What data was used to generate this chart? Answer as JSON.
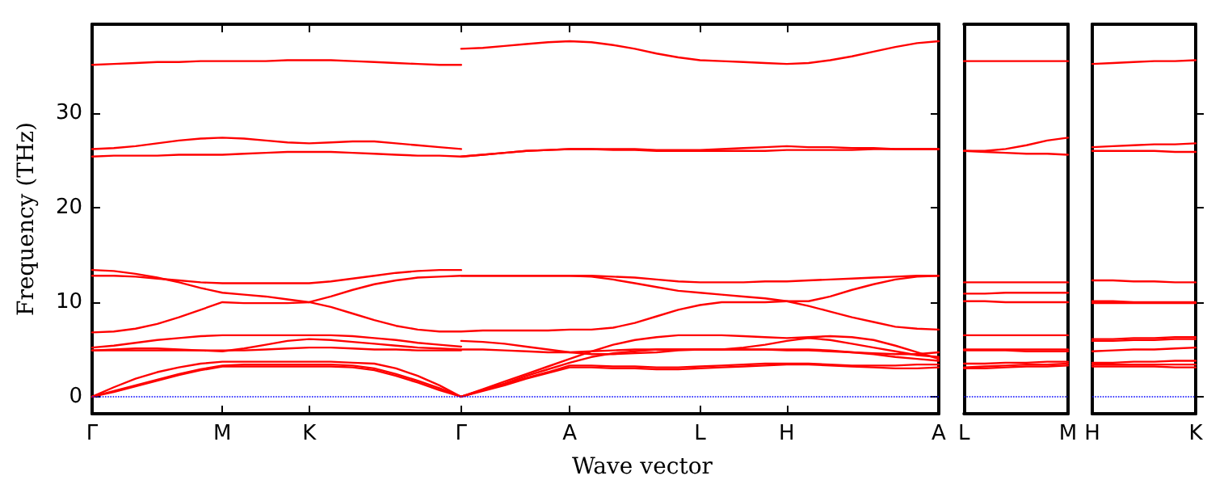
{
  "chart_data": [
    {
      "type": "line",
      "xlabel": "Wave vector",
      "ylabel": "Frequency (THz)",
      "ylim": [
        -1.8,
        39.4
      ],
      "yticks": [
        0,
        10,
        20,
        30
      ],
      "categories": [
        "Γ",
        null,
        null,
        null,
        null,
        null,
        "M",
        null,
        null,
        null,
        "K",
        null,
        null,
        null,
        null,
        null,
        null,
        "Γ",
        null,
        null,
        null,
        null,
        "A",
        null,
        null,
        null,
        null,
        null,
        "L",
        null,
        null,
        null,
        "H",
        null,
        null,
        null,
        null,
        null,
        null,
        "A"
      ],
      "grid": false,
      "marker": "none",
      "line_style": "solid",
      "ref_lines": [
        {
          "axis": "y",
          "value": 0,
          "color": "#0000ff",
          "line_style": "dotted"
        }
      ],
      "series": [
        {
          "color": "#ff0000",
          "values": [
            35.1,
            35.2,
            35.3,
            35.4,
            35.4,
            35.5,
            35.5,
            35.5,
            35.5,
            35.6,
            35.6,
            35.6,
            35.5,
            35.4,
            35.3,
            35.2,
            35.1,
            35.1,
            null,
            null,
            null,
            null,
            null,
            null,
            null,
            null,
            null,
            null,
            null,
            null,
            null,
            null,
            null,
            null,
            null,
            null,
            null,
            null,
            null,
            null
          ]
        },
        {
          "color": "#ff0000",
          "values": [
            26.2,
            26.3,
            26.5,
            26.8,
            27.1,
            27.3,
            27.4,
            27.3,
            27.1,
            26.9,
            26.8,
            26.9,
            27.0,
            27.0,
            26.8,
            26.6,
            26.4,
            26.2,
            null,
            null,
            null,
            null,
            null,
            null,
            null,
            null,
            null,
            null,
            null,
            null,
            null,
            null,
            null,
            null,
            null,
            null,
            null,
            null,
            null,
            null
          ]
        },
        {
          "color": "#ff0000",
          "values": [
            25.4,
            25.5,
            25.5,
            25.5,
            25.6,
            25.6,
            25.6,
            25.7,
            25.8,
            25.9,
            25.9,
            25.9,
            25.8,
            25.7,
            25.6,
            25.5,
            25.5,
            25.4,
            25.6,
            25.8,
            26.0,
            26.1,
            26.2,
            26.2,
            26.1,
            26.1,
            26.0,
            26.0,
            26.0,
            26.0,
            26.0,
            26.0,
            26.1,
            26.1,
            26.1,
            26.1,
            26.2,
            26.2,
            26.2,
            26.2
          ]
        },
        {
          "color": "#ff0000",
          "values": [
            null,
            null,
            null,
            null,
            null,
            null,
            null,
            null,
            null,
            null,
            null,
            null,
            null,
            null,
            null,
            null,
            null,
            25.4,
            25.6,
            25.8,
            26.0,
            26.1,
            26.2,
            26.2,
            26.2,
            26.2,
            26.1,
            26.1,
            26.1,
            26.2,
            26.3,
            26.4,
            26.5,
            26.4,
            26.4,
            26.3,
            26.3,
            26.2,
            26.2,
            26.2
          ]
        },
        {
          "color": "#ff0000",
          "values": [
            null,
            null,
            null,
            null,
            null,
            null,
            null,
            null,
            null,
            null,
            null,
            null,
            null,
            null,
            null,
            null,
            null,
            36.8,
            36.9,
            37.1,
            37.3,
            37.5,
            37.6,
            37.5,
            37.2,
            36.8,
            36.3,
            35.9,
            35.6,
            35.5,
            35.4,
            35.3,
            35.2,
            35.3,
            35.6,
            36.0,
            36.5,
            37.0,
            37.4,
            37.6
          ]
        },
        {
          "color": "#ff0000",
          "values": [
            13.4,
            13.3,
            13.0,
            12.6,
            12.1,
            11.5,
            11.0,
            10.8,
            10.6,
            10.3,
            10.0,
            9.5,
            8.8,
            8.1,
            7.5,
            7.1,
            6.9,
            6.9,
            7.0,
            7.0,
            7.0,
            7.0,
            7.1,
            7.1,
            7.3,
            7.8,
            8.5,
            9.2,
            9.7,
            10.0,
            10.0,
            10.0,
            10.1,
            10.1,
            10.6,
            11.3,
            11.9,
            12.4,
            12.7,
            12.8
          ]
        },
        {
          "color": "#ff0000",
          "values": [
            12.8,
            12.8,
            12.7,
            12.5,
            12.3,
            12.1,
            12.0,
            12.0,
            12.0,
            12.0,
            12.0,
            12.2,
            12.5,
            12.8,
            13.1,
            13.3,
            13.4,
            13.4,
            null,
            null,
            null,
            null,
            null,
            null,
            null,
            null,
            null,
            null,
            null,
            null,
            null,
            null,
            null,
            null,
            null,
            null,
            null,
            null,
            null,
            null
          ]
        },
        {
          "color": "#ff0000",
          "values": [
            6.8,
            6.9,
            7.2,
            7.7,
            8.4,
            9.2,
            10.0,
            9.9,
            9.9,
            9.9,
            10.0,
            10.6,
            11.3,
            11.9,
            12.3,
            12.6,
            12.7,
            12.8,
            12.8,
            12.8,
            12.8,
            12.8,
            12.8,
            12.7,
            12.4,
            12.0,
            11.6,
            11.2,
            11.0,
            10.8,
            10.6,
            10.4,
            10.1,
            9.6,
            9.0,
            8.4,
            7.9,
            7.4,
            7.2,
            7.1
          ]
        },
        {
          "color": "#ff0000",
          "values": [
            null,
            null,
            null,
            null,
            null,
            null,
            null,
            null,
            null,
            null,
            null,
            null,
            null,
            null,
            null,
            null,
            null,
            12.8,
            12.8,
            12.8,
            12.8,
            12.8,
            12.8,
            12.8,
            12.7,
            12.6,
            12.4,
            12.2,
            12.1,
            12.1,
            12.1,
            12.2,
            12.2,
            12.3,
            12.4,
            12.5,
            12.6,
            12.7,
            12.8,
            12.8
          ]
        },
        {
          "color": "#ff0000",
          "values": [
            5.2,
            5.4,
            5.7,
            6.0,
            6.2,
            6.4,
            6.5,
            6.5,
            6.5,
            6.5,
            6.5,
            6.5,
            6.4,
            6.2,
            6.0,
            5.7,
            5.5,
            5.3,
            null,
            null,
            null,
            null,
            null,
            null,
            null,
            null,
            null,
            null,
            null,
            null,
            null,
            null,
            null,
            null,
            null,
            null,
            null,
            null,
            null,
            null
          ]
        },
        {
          "color": "#ff0000",
          "values": [
            4.9,
            5.0,
            5.1,
            5.1,
            5.0,
            4.9,
            4.8,
            5.1,
            5.5,
            5.9,
            6.1,
            6.0,
            5.8,
            5.6,
            5.4,
            5.2,
            5.1,
            5.0,
            5.0,
            4.9,
            4.8,
            4.7,
            4.7,
            4.8,
            4.9,
            5.0,
            5.0,
            5.0,
            5.0,
            5.0,
            5.0,
            5.0,
            4.9,
            4.9,
            4.8,
            4.7,
            4.6,
            4.5,
            4.5,
            4.7
          ]
        },
        {
          "color": "#ff0000",
          "values": [
            4.9,
            4.9,
            4.9,
            4.9,
            4.9,
            4.9,
            4.9,
            4.9,
            5.0,
            5.1,
            5.2,
            5.2,
            5.1,
            5.0,
            5.0,
            4.9,
            4.9,
            4.9,
            null,
            null,
            null,
            null,
            null,
            null,
            null,
            null,
            null,
            null,
            null,
            null,
            null,
            null,
            null,
            null,
            null,
            null,
            null,
            null,
            null,
            null
          ]
        },
        {
          "color": "#ff0000",
          "values": [
            null,
            null,
            null,
            null,
            null,
            null,
            null,
            null,
            null,
            null,
            null,
            null,
            null,
            null,
            null,
            null,
            null,
            5.9,
            5.8,
            5.6,
            5.3,
            5.0,
            4.7,
            4.5,
            4.5,
            4.6,
            4.7,
            4.9,
            5.0,
            5.0,
            5.0,
            5.0,
            5.0,
            5.0,
            4.9,
            4.7,
            4.5,
            4.2,
            4.0,
            3.8
          ]
        },
        {
          "color": "#ff0000",
          "values": [
            0,
            1.0,
            1.9,
            2.6,
            3.1,
            3.5,
            3.7,
            3.7,
            3.7,
            3.7,
            3.7,
            3.7,
            3.6,
            3.5,
            3.0,
            2.2,
            1.2,
            0,
            0.8,
            1.6,
            2.4,
            3.2,
            4.0,
            4.8,
            5.5,
            6.0,
            6.3,
            6.5,
            6.5,
            6.5,
            6.4,
            6.3,
            6.2,
            6.3,
            6.4,
            6.3,
            6.0,
            5.4,
            4.7,
            4.0
          ]
        },
        {
          "color": "#ff0000",
          "values": [
            0,
            0.6,
            1.2,
            1.8,
            2.4,
            2.9,
            3.3,
            3.4,
            3.4,
            3.4,
            3.4,
            3.4,
            3.3,
            3.0,
            2.4,
            1.7,
            0.9,
            0,
            0.7,
            1.4,
            2.2,
            2.9,
            3.6,
            4.2,
            4.6,
            4.8,
            5.0,
            5.0,
            5.0,
            5.0,
            5.2,
            5.5,
            5.9,
            6.2,
            6.0,
            5.6,
            5.2,
            4.8,
            4.4,
            4.2
          ]
        },
        {
          "color": "#ff0000",
          "values": [
            0,
            0.5,
            1.1,
            1.7,
            2.3,
            2.8,
            3.2,
            3.2,
            3.2,
            3.2,
            3.2,
            3.2,
            3.1,
            2.8,
            2.2,
            1.5,
            0.7,
            0,
            0.6,
            1.2,
            1.9,
            2.5,
            3.1,
            3.1,
            3.0,
            3.0,
            2.9,
            2.9,
            3.0,
            3.1,
            3.2,
            3.3,
            3.4,
            3.4,
            3.3,
            3.2,
            3.1,
            3.0,
            3.0,
            3.1
          ]
        },
        {
          "color": "#ff0000",
          "values": [
            null,
            null,
            null,
            null,
            null,
            null,
            null,
            null,
            null,
            null,
            null,
            null,
            null,
            null,
            null,
            null,
            null,
            0,
            0.7,
            1.3,
            2.0,
            2.6,
            3.3,
            3.3,
            3.2,
            3.2,
            3.1,
            3.1,
            3.2,
            3.3,
            3.4,
            3.5,
            3.5,
            3.5,
            3.4,
            3.3,
            3.3,
            3.3,
            3.4,
            3.4
          ]
        }
      ]
    },
    {
      "type": "line",
      "ylim": [
        -1.8,
        39.4
      ],
      "yticks": [
        0,
        10,
        20,
        30
      ],
      "tick_labels": "x",
      "categories": [
        "L",
        null,
        null,
        null,
        null,
        "M"
      ],
      "grid": false,
      "marker": "none",
      "line_style": "solid",
      "ref_lines": [
        {
          "axis": "y",
          "value": 0,
          "color": "#0000ff",
          "line_style": "dotted"
        }
      ],
      "series": [
        {
          "color": "#ff0000",
          "values": [
            35.5,
            35.5,
            35.5,
            35.5,
            35.5,
            35.5
          ]
        },
        {
          "color": "#ff0000",
          "values": [
            26.0,
            26.0,
            26.2,
            26.6,
            27.1,
            27.4
          ]
        },
        {
          "color": "#ff0000",
          "values": [
            26.0,
            25.9,
            25.8,
            25.7,
            25.7,
            25.6
          ]
        },
        {
          "color": "#ff0000",
          "values": [
            12.1,
            12.1,
            12.1,
            12.1,
            12.1,
            12.1
          ]
        },
        {
          "color": "#ff0000",
          "values": [
            10.9,
            10.9,
            11.0,
            11.0,
            11.0,
            11.0
          ]
        },
        {
          "color": "#ff0000",
          "values": [
            10.1,
            10.1,
            10.0,
            10.0,
            10.0,
            10.0
          ]
        },
        {
          "color": "#ff0000",
          "values": [
            6.5,
            6.5,
            6.5,
            6.5,
            6.5,
            6.5
          ]
        },
        {
          "color": "#ff0000",
          "values": [
            5.0,
            5.0,
            5.0,
            5.0,
            5.0,
            5.0
          ]
        },
        {
          "color": "#ff0000",
          "values": [
            4.9,
            4.9,
            4.9,
            4.8,
            4.8,
            4.8
          ]
        },
        {
          "color": "#ff0000",
          "values": [
            3.5,
            3.5,
            3.6,
            3.6,
            3.7,
            3.7
          ]
        },
        {
          "color": "#ff0000",
          "values": [
            3.1,
            3.2,
            3.3,
            3.4,
            3.4,
            3.5
          ]
        },
        {
          "color": "#ff0000",
          "values": [
            3.0,
            3.0,
            3.1,
            3.2,
            3.2,
            3.3
          ]
        }
      ]
    },
    {
      "type": "line",
      "ylim": [
        -1.8,
        39.4
      ],
      "yticks": [
        0,
        10,
        20,
        30
      ],
      "tick_labels": "x",
      "categories": [
        "H",
        null,
        null,
        null,
        null,
        "K"
      ],
      "grid": false,
      "marker": "none",
      "line_style": "solid",
      "ref_lines": [
        {
          "axis": "y",
          "value": 0,
          "color": "#0000ff",
          "line_style": "dotted"
        }
      ],
      "series": [
        {
          "color": "#ff0000",
          "values": [
            35.2,
            35.3,
            35.4,
            35.5,
            35.5,
            35.6
          ]
        },
        {
          "color": "#ff0000",
          "values": [
            26.4,
            26.5,
            26.6,
            26.7,
            26.7,
            26.8
          ]
        },
        {
          "color": "#ff0000",
          "values": [
            26.0,
            26.0,
            26.0,
            26.0,
            25.9,
            25.9
          ]
        },
        {
          "color": "#ff0000",
          "values": [
            12.3,
            12.3,
            12.2,
            12.2,
            12.1,
            12.1
          ]
        },
        {
          "color": "#ff0000",
          "values": [
            10.1,
            10.1,
            10.0,
            10.0,
            10.0,
            10.0
          ]
        },
        {
          "color": "#ff0000",
          "values": [
            9.9,
            9.9,
            9.9,
            9.9,
            9.9,
            9.9
          ]
        },
        {
          "color": "#ff0000",
          "values": [
            6.1,
            6.1,
            6.2,
            6.2,
            6.3,
            6.3
          ]
        },
        {
          "color": "#ff0000",
          "values": [
            5.9,
            5.9,
            6.0,
            6.0,
            6.1,
            6.1
          ]
        },
        {
          "color": "#ff0000",
          "values": [
            4.8,
            4.9,
            5.0,
            5.0,
            5.1,
            5.2
          ]
        },
        {
          "color": "#ff0000",
          "values": [
            3.6,
            3.6,
            3.7,
            3.7,
            3.8,
            3.8
          ]
        },
        {
          "color": "#ff0000",
          "values": [
            3.4,
            3.4,
            3.4,
            3.4,
            3.4,
            3.4
          ]
        },
        {
          "color": "#ff0000",
          "values": [
            3.2,
            3.2,
            3.2,
            3.2,
            3.1,
            3.1
          ]
        }
      ]
    }
  ]
}
